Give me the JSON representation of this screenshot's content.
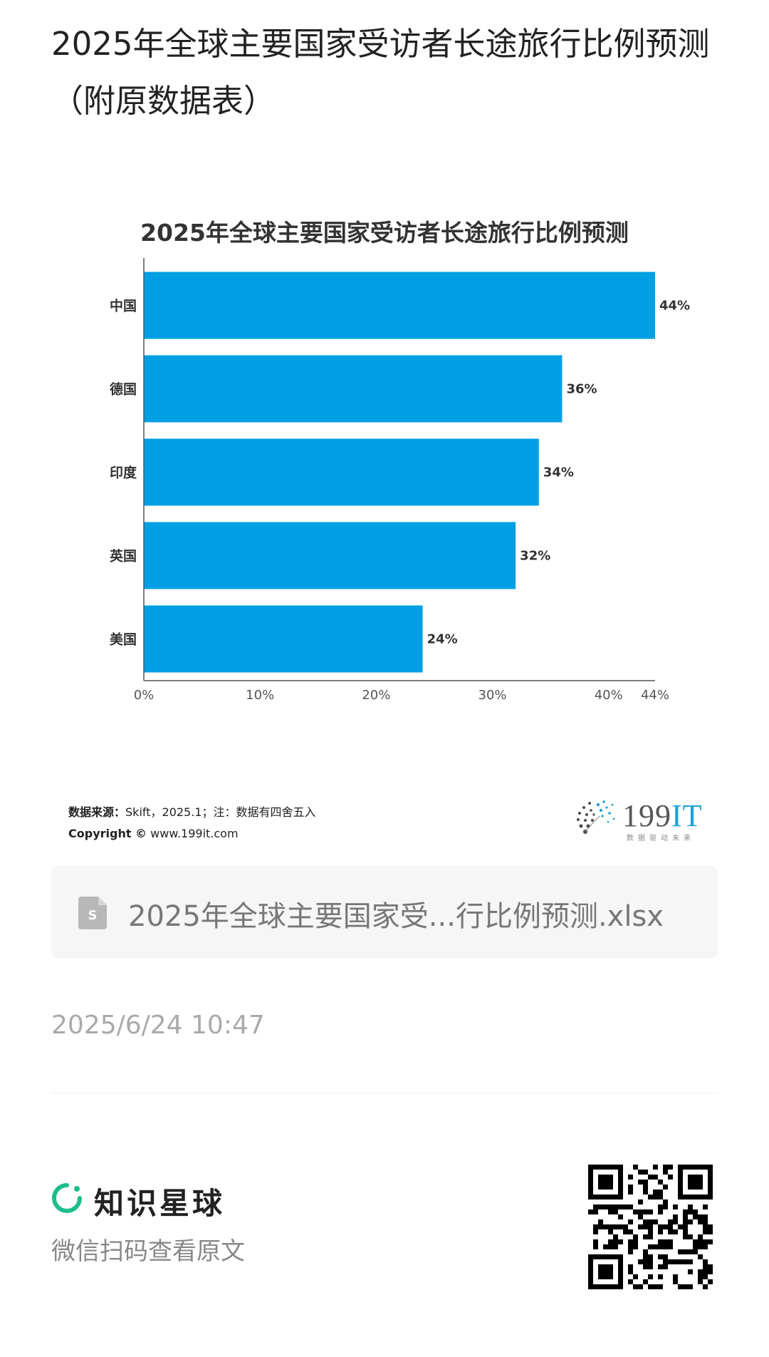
{
  "post": {
    "title": "2025年全球主要国家受访者长途旅行比例预测（附原数据表）",
    "time": "2025/6/24 10:47"
  },
  "chart_data": {
    "type": "bar",
    "title": "2025年全球主要国家受访者长途旅行比例预测",
    "orientation": "horizontal",
    "categories": [
      "中国",
      "德国",
      "印度",
      "英国",
      "美国"
    ],
    "values": [
      44,
      36,
      34,
      32,
      24
    ],
    "value_labels": [
      "44%",
      "36%",
      "34%",
      "32%",
      "24%"
    ],
    "xlim": [
      0,
      44
    ],
    "x_ticks": [
      0,
      10,
      20,
      30,
      40,
      44
    ],
    "x_tick_labels": [
      "0%",
      "10%",
      "20%",
      "30%",
      "40%",
      "44%"
    ],
    "grid": false,
    "bar_color": "#009fe3"
  },
  "chart_footer": {
    "source_label": "数据来源：",
    "source_text": "Skift，2025.1；注：数据有四舍五入",
    "copyright_label": "Copyright ©",
    "copyright_text": "www.199it.com",
    "logo_text_num": "199",
    "logo_text_it": "IT",
    "logo_tagline": "数据驱动未来"
  },
  "attachment": {
    "file_name": "2025年全球主要国家受...行比例预测.xlsx",
    "icon": "spreadsheet-file-icon",
    "icon_color": "#b8b8b8"
  },
  "footer": {
    "brand_name": "知识星球",
    "brand_icon": "planet-ring-icon",
    "brand_color": "#1bbd8c",
    "scan_hint": "微信扫码查看原文",
    "qr_icon": "qr-code-icon"
  }
}
